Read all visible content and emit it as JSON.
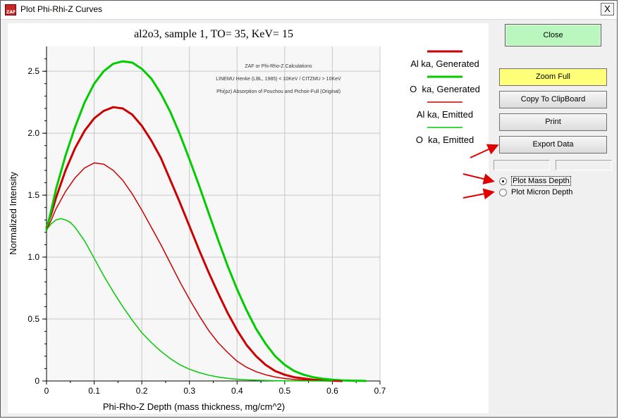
{
  "window": {
    "title": "Plot Phi-Rhi-Z Curves",
    "app_icon_text": "ZAF",
    "close_glyph": "X"
  },
  "buttons": {
    "close": "Close",
    "zoom_full": "Zoom Full",
    "copy": "Copy To ClipBoard",
    "print": "Print",
    "export": "Export Data"
  },
  "radios": [
    {
      "label": "Plot Mass Depth",
      "checked": true
    },
    {
      "label": "Plot Micron Depth",
      "checked": false
    }
  ],
  "chart_data": {
    "type": "line",
    "title": "al2o3, sample 1, TO= 35, KeV= 15",
    "xlabel": "Phi-Rho-Z Depth (mass thickness, mg/cm^2)",
    "ylabel": "Normalized Intensity",
    "xlim": [
      0,
      0.7
    ],
    "ylim": [
      0,
      2.7
    ],
    "x_ticks": [
      "0",
      "0.1",
      "0.2",
      "0.3",
      "0.4",
      "0.5",
      "0.6",
      "0.7"
    ],
    "y_ticks": [
      "0",
      "0.5",
      "1.0",
      "1.5",
      "2.0",
      "2.5"
    ],
    "annotations": [
      "ZAF or Phi-Rho-Z Calculations",
      "LINEMU   Henke (LBL, 1985) < 10KeV / CITZMU > 10KeV",
      "Phi(pz)  Absorption of Pouchou and Pichoir-Full (Original)"
    ],
    "series": [
      {
        "name": "Al ka, Generated",
        "color": "#cc0000",
        "width": 3,
        "x": [
          0,
          0.01,
          0.02,
          0.04,
          0.06,
          0.08,
          0.1,
          0.12,
          0.14,
          0.16,
          0.18,
          0.2,
          0.22,
          0.24,
          0.26,
          0.28,
          0.3,
          0.32,
          0.34,
          0.36,
          0.38,
          0.4,
          0.42,
          0.44,
          0.46,
          0.48,
          0.5,
          0.52,
          0.54,
          0.56,
          0.58,
          0.6,
          0.62
        ],
        "y": [
          1.24,
          1.35,
          1.48,
          1.7,
          1.88,
          2.02,
          2.12,
          2.18,
          2.21,
          2.2,
          2.15,
          2.06,
          1.94,
          1.8,
          1.62,
          1.44,
          1.25,
          1.06,
          0.88,
          0.71,
          0.55,
          0.41,
          0.29,
          0.2,
          0.13,
          0.08,
          0.05,
          0.03,
          0.02,
          0.01,
          0.005,
          0.002,
          0
        ]
      },
      {
        "name": "O  ka, Generated",
        "color": "#00cc00",
        "width": 3,
        "x": [
          0,
          0.01,
          0.02,
          0.04,
          0.06,
          0.08,
          0.1,
          0.12,
          0.14,
          0.16,
          0.18,
          0.2,
          0.22,
          0.24,
          0.26,
          0.28,
          0.3,
          0.32,
          0.34,
          0.36,
          0.38,
          0.4,
          0.42,
          0.44,
          0.46,
          0.48,
          0.5,
          0.52,
          0.54,
          0.56,
          0.58,
          0.6,
          0.62,
          0.64,
          0.66,
          0.67
        ],
        "y": [
          1.22,
          1.38,
          1.55,
          1.82,
          2.05,
          2.25,
          2.4,
          2.5,
          2.56,
          2.58,
          2.57,
          2.52,
          2.44,
          2.32,
          2.17,
          1.99,
          1.79,
          1.58,
          1.36,
          1.14,
          0.93,
          0.74,
          0.57,
          0.42,
          0.3,
          0.2,
          0.13,
          0.08,
          0.05,
          0.03,
          0.018,
          0.01,
          0.005,
          0.002,
          0.001,
          0
        ]
      },
      {
        "name": "Al ka, Emitted",
        "color": "#cc0000",
        "width": 1.5,
        "x": [
          0,
          0.01,
          0.02,
          0.04,
          0.06,
          0.08,
          0.1,
          0.12,
          0.14,
          0.16,
          0.18,
          0.2,
          0.22,
          0.24,
          0.26,
          0.28,
          0.3,
          0.32,
          0.34,
          0.36,
          0.38,
          0.4,
          0.42,
          0.44,
          0.46,
          0.48,
          0.5,
          0.52,
          0.54,
          0.56,
          0.58,
          0.6,
          0.62
        ],
        "y": [
          1.22,
          1.3,
          1.39,
          1.53,
          1.64,
          1.72,
          1.76,
          1.75,
          1.7,
          1.62,
          1.51,
          1.38,
          1.24,
          1.1,
          0.95,
          0.8,
          0.66,
          0.53,
          0.41,
          0.31,
          0.23,
          0.16,
          0.11,
          0.075,
          0.05,
          0.032,
          0.02,
          0.012,
          0.007,
          0.004,
          0.002,
          0.001,
          0
        ]
      },
      {
        "name": "O  ka, Emitted",
        "color": "#00cc00",
        "width": 1.5,
        "x": [
          0,
          0.01,
          0.02,
          0.03,
          0.04,
          0.05,
          0.06,
          0.08,
          0.1,
          0.12,
          0.14,
          0.16,
          0.18,
          0.2,
          0.22,
          0.24,
          0.26,
          0.28,
          0.3,
          0.32,
          0.34,
          0.36,
          0.38,
          0.4,
          0.42,
          0.44,
          0.46,
          0.48,
          0.5,
          0.52,
          0.54,
          0.56,
          0.58,
          0.6
        ],
        "y": [
          1.22,
          1.27,
          1.3,
          1.31,
          1.3,
          1.28,
          1.24,
          1.13,
          0.99,
          0.85,
          0.72,
          0.6,
          0.49,
          0.39,
          0.31,
          0.24,
          0.18,
          0.13,
          0.095,
          0.068,
          0.047,
          0.032,
          0.021,
          0.014,
          0.009,
          0.006,
          0.004,
          0.002,
          0.001,
          0.0006,
          0.0003,
          0.0002,
          0.0001,
          0
        ]
      }
    ]
  }
}
